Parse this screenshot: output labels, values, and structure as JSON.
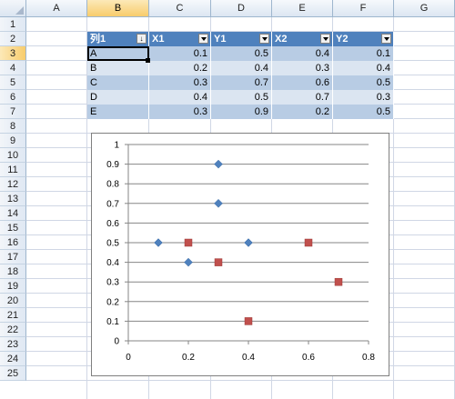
{
  "columns": [
    "A",
    "B",
    "C",
    "D",
    "E",
    "F",
    "G"
  ],
  "active_column": "B",
  "rows": [
    "1",
    "2",
    "3",
    "4",
    "5",
    "6",
    "7",
    "8",
    "9",
    "10",
    "11",
    "12",
    "13",
    "14",
    "15",
    "16",
    "17",
    "18",
    "19",
    "20",
    "21",
    "22",
    "23",
    "24",
    "25"
  ],
  "active_row": "3",
  "table": {
    "headers": [
      "列1",
      "X1",
      "Y1",
      "X2",
      "Y2"
    ],
    "rows": [
      [
        "A",
        "0.1",
        "0.5",
        "0.4",
        "0.1"
      ],
      [
        "B",
        "0.2",
        "0.4",
        "0.3",
        "0.4"
      ],
      [
        "C",
        "0.3",
        "0.7",
        "0.6",
        "0.5"
      ],
      [
        "D",
        "0.4",
        "0.5",
        "0.7",
        "0.3"
      ],
      [
        "E",
        "0.3",
        "0.9",
        "0.2",
        "0.5"
      ]
    ]
  },
  "colors": {
    "table_header": "#4f81bd",
    "band_dark": "#b8cce4",
    "band_light": "#dbe5f1",
    "series1": "#4f81bd",
    "series2": "#c0504d"
  },
  "chart_data": {
    "type": "scatter",
    "x_ticks": [
      "0",
      "0.2",
      "0.4",
      "0.6",
      "0.8"
    ],
    "y_ticks": [
      "0",
      "0.1",
      "0.2",
      "0.3",
      "0.4",
      "0.5",
      "0.6",
      "0.7",
      "0.8",
      "0.9",
      "1"
    ],
    "xlim": [
      0,
      0.8
    ],
    "ylim": [
      0,
      1
    ],
    "horizontal_gridlines": true,
    "legend": "none",
    "series": [
      {
        "marker": "diamond",
        "color": "#4f81bd",
        "points": [
          [
            0.1,
            0.5
          ],
          [
            0.2,
            0.4
          ],
          [
            0.3,
            0.7
          ],
          [
            0.4,
            0.5
          ],
          [
            0.3,
            0.9
          ]
        ]
      },
      {
        "marker": "square",
        "color": "#c0504d",
        "points": [
          [
            0.4,
            0.1
          ],
          [
            0.3,
            0.4
          ],
          [
            0.6,
            0.5
          ],
          [
            0.7,
            0.3
          ],
          [
            0.2,
            0.5
          ]
        ]
      }
    ]
  }
}
